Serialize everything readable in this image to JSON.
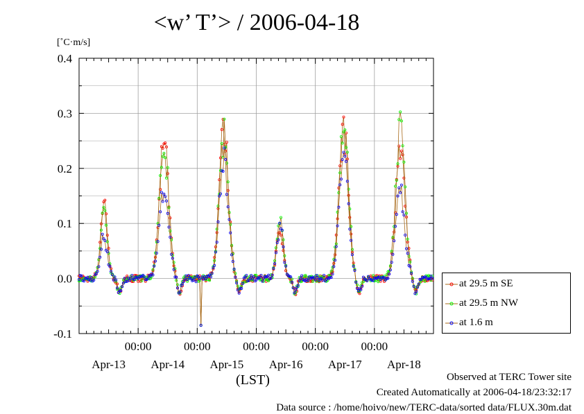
{
  "title": "<w’ T’> / 2006-04-18",
  "y_unit": "[˚C·m/s]",
  "x_unit": "(LST)",
  "footer": {
    "site": "Observed at TERC Tower site",
    "created": "Created Automatically at 2006-04-18/23:32:17",
    "source": "Data source : /home/hoivo/new/TERC-data/sorted data/FLUX.30m.dat"
  },
  "colors": {
    "se": "#ff0000",
    "nw": "#00ff00",
    "low": "#0000ff",
    "line": "#a86a1a",
    "grid": "#a0a0a0"
  },
  "chart_data": {
    "type": "line",
    "title": "<w’ T’> / 2006-04-18",
    "ylabel": "[˚C·m/s]",
    "xlabel": "(LST)",
    "ylim": [
      -0.1,
      0.4
    ],
    "yticks": [
      "-0.1",
      "0.0",
      "0.1",
      "0.2",
      "0.3",
      "0.4"
    ],
    "xlim_days": [
      0,
      6
    ],
    "x_time_labels": [
      "00:00",
      "00:00",
      "00:00",
      "00:00",
      "00:00"
    ],
    "x_date_labels": [
      "Apr-13",
      "Apr-14",
      "Apr-15",
      "Apr-16",
      "Apr-17",
      "Apr-18"
    ],
    "grid": true,
    "legend_position": "right, below plot area",
    "series": [
      {
        "name": "at 29.5 m SE",
        "color": "#ff0000",
        "peaks": [
          {
            "day": 0.42,
            "value": 0.14
          },
          {
            "day": 1.44,
            "value": 0.27
          },
          {
            "day": 2.45,
            "value": 0.28
          },
          {
            "day": 3.4,
            "value": 0.09
          },
          {
            "day": 4.48,
            "value": 0.29
          },
          {
            "day": 5.44,
            "value": 0.25
          }
        ]
      },
      {
        "name": "at 29.5 m NW",
        "color": "#00ff00",
        "peaks": [
          {
            "day": 0.42,
            "value": 0.13
          },
          {
            "day": 1.44,
            "value": 0.26
          },
          {
            "day": 2.45,
            "value": 0.27
          },
          {
            "day": 3.4,
            "value": 0.11
          },
          {
            "day": 4.48,
            "value": 0.31
          },
          {
            "day": 5.44,
            "value": 0.29
          }
        ]
      },
      {
        "name": "at 1.6 m",
        "color": "#0000ff",
        "peaks": [
          {
            "day": 0.42,
            "value": 0.08
          },
          {
            "day": 1.44,
            "value": 0.18
          },
          {
            "day": 2.45,
            "value": 0.23
          },
          {
            "day": 3.4,
            "value": 0.1
          },
          {
            "day": 4.48,
            "value": 0.24
          },
          {
            "day": 5.44,
            "value": 0.17
          }
        ]
      }
    ],
    "night_value": 0.0,
    "min_value": -0.085
  }
}
